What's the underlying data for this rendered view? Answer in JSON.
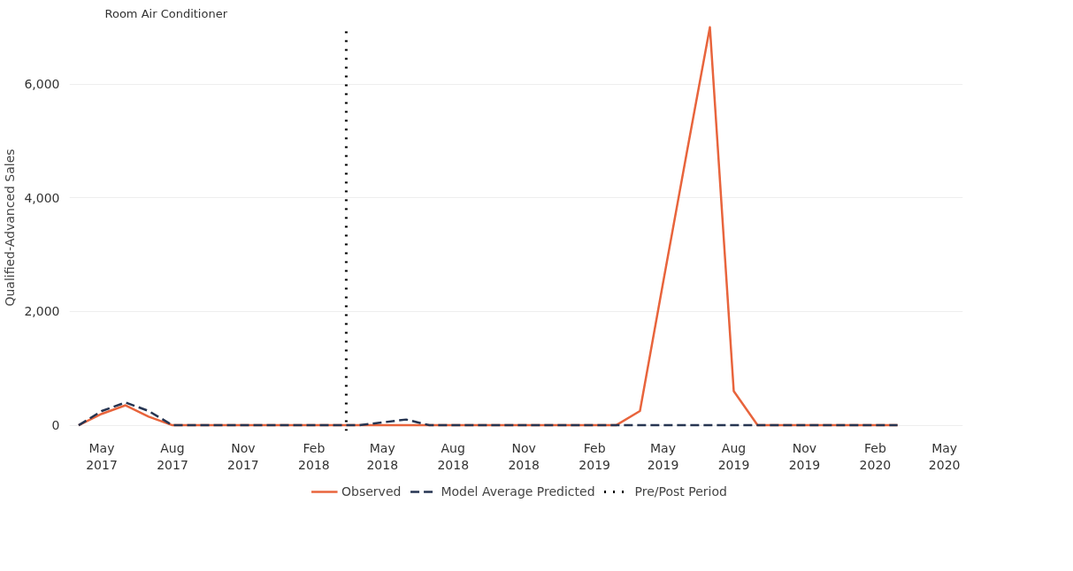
{
  "chart_data": {
    "type": "line",
    "title": "Room Air Conditioner",
    "ylabel": "Qualified-Advanced Sales",
    "x": [
      "2017-04",
      "2017-05",
      "2017-06",
      "2017-07",
      "2017-08",
      "2017-09",
      "2017-10",
      "2017-11",
      "2017-12",
      "2018-01",
      "2018-02",
      "2018-03",
      "2018-04",
      "2018-05",
      "2018-06",
      "2018-07",
      "2018-08",
      "2018-09",
      "2018-10",
      "2018-11",
      "2018-12",
      "2019-01",
      "2019-02",
      "2019-03",
      "2019-04",
      "2019-05",
      "2019-06",
      "2019-07",
      "2019-08",
      "2019-09",
      "2019-10",
      "2019-11",
      "2019-12",
      "2020-01",
      "2020-02",
      "2020-03"
    ],
    "series": [
      {
        "name": "Observed",
        "color": "#e8643c",
        "line_style": "solid",
        "values": [
          0,
          200,
          350,
          150,
          0,
          0,
          0,
          0,
          0,
          0,
          0,
          0,
          0,
          0,
          0,
          0,
          0,
          0,
          0,
          0,
          0,
          0,
          0,
          0,
          250,
          2500,
          4800,
          7000,
          600,
          0,
          0,
          0,
          0,
          0,
          0,
          0
        ]
      },
      {
        "name": "Model Average Predicted",
        "color": "#263552",
        "line_style": "dashed",
        "values": [
          0,
          250,
          400,
          250,
          0,
          0,
          0,
          0,
          0,
          0,
          0,
          0,
          0,
          50,
          100,
          0,
          0,
          0,
          0,
          0,
          0,
          0,
          0,
          0,
          0,
          0,
          0,
          0,
          0,
          0,
          0,
          0,
          0,
          0,
          0,
          0
        ]
      }
    ],
    "ref_lines": [
      {
        "axis": "x",
        "value": "2018-03-15",
        "label": "Pre/Post Period",
        "color": "#000000",
        "line_style": "dotted"
      }
    ],
    "xlim": [
      "2017-03-20",
      "2020-05-25"
    ],
    "xticks": [
      {
        "value": "2017-05",
        "label": "May\n2017"
      },
      {
        "value": "2017-08",
        "label": "Aug\n2017"
      },
      {
        "value": "2017-11",
        "label": "Nov\n2017"
      },
      {
        "value": "2018-02",
        "label": "Feb\n2018"
      },
      {
        "value": "2018-05",
        "label": "May\n2018"
      },
      {
        "value": "2018-08",
        "label": "Aug\n2018"
      },
      {
        "value": "2018-11",
        "label": "Nov\n2018"
      },
      {
        "value": "2019-02",
        "label": "Feb\n2019"
      },
      {
        "value": "2019-05",
        "label": "May\n2019"
      },
      {
        "value": "2019-08",
        "label": "Aug\n2019"
      },
      {
        "value": "2019-11",
        "label": "Nov\n2019"
      },
      {
        "value": "2020-02",
        "label": "Feb\n2020"
      },
      {
        "value": "2020-05",
        "label": "May\n2020"
      }
    ],
    "ylim": [
      -100,
      7050
    ],
    "yticks": [
      {
        "value": 0,
        "label": "0"
      },
      {
        "value": 2000,
        "label": "2,000"
      },
      {
        "value": 4000,
        "label": "4,000"
      },
      {
        "value": 6000,
        "label": "6,000"
      }
    ],
    "grid": "y",
    "legend": "bottom",
    "marker": "none"
  }
}
